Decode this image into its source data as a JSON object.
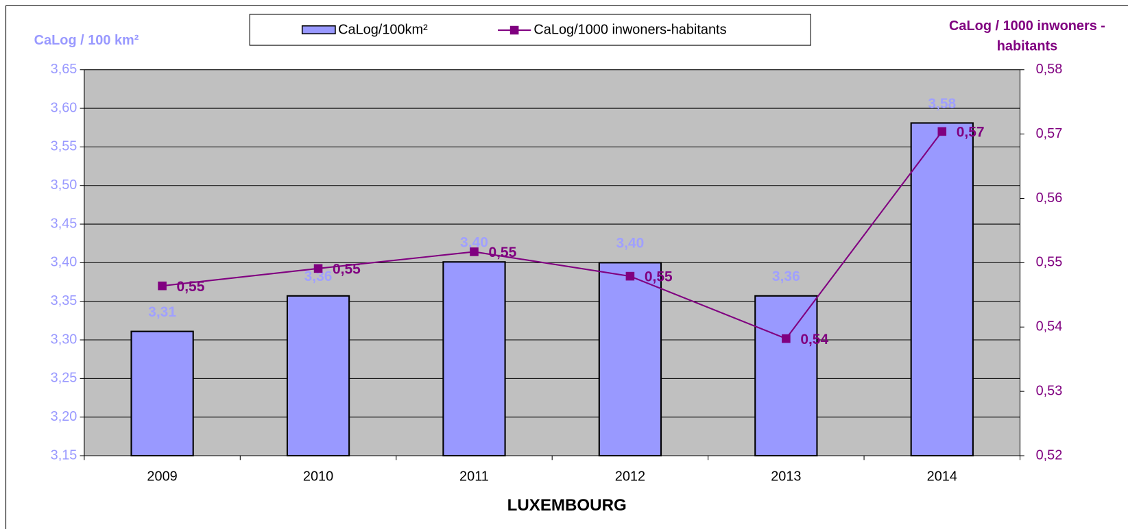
{
  "chart_data": {
    "type": "bar_line",
    "categories": [
      "2009",
      "2010",
      "2011",
      "2012",
      "2013",
      "2014"
    ],
    "xlabel": "LUXEMBOURG",
    "ylabel": "CaLog / 100 km²",
    "y2label": [
      "CaLog / 1000 inwoners -",
      "habitants"
    ],
    "ylim": [
      3.15,
      3.65
    ],
    "yticks": [
      {
        "value": 3.15,
        "label": "3,15"
      },
      {
        "value": 3.2,
        "label": "3,20"
      },
      {
        "value": 3.25,
        "label": "3,25"
      },
      {
        "value": 3.3,
        "label": "3,30"
      },
      {
        "value": 3.35,
        "label": "3,35"
      },
      {
        "value": 3.4,
        "label": "3,40"
      },
      {
        "value": 3.45,
        "label": "3,45"
      },
      {
        "value": 3.5,
        "label": "3,50"
      },
      {
        "value": 3.55,
        "label": "3,55"
      },
      {
        "value": 3.6,
        "label": "3,60"
      },
      {
        "value": 3.65,
        "label": "3,65"
      }
    ],
    "y2lim": [
      0.52,
      0.58
    ],
    "y2ticks": [
      {
        "value": 0.52,
        "label": "0,52"
      },
      {
        "value": 0.53,
        "label": "0,53"
      },
      {
        "value": 0.54,
        "label": "0,54"
      },
      {
        "value": 0.55,
        "label": "0,55"
      },
      {
        "value": 0.56,
        "label": "0,56"
      },
      {
        "value": 0.57,
        "label": "0,57"
      },
      {
        "value": 0.58,
        "label": "0,58"
      }
    ],
    "grid": true,
    "series": [
      {
        "name": "CaLog/100km²",
        "type": "bar",
        "color": "#9999ff",
        "values": [
          3.311,
          3.357,
          3.401,
          3.4,
          3.357,
          3.581
        ],
        "value_labels": [
          "3,31",
          "3,36",
          "3,40",
          "3,40",
          "3,36",
          "3,58"
        ]
      },
      {
        "name": "CaLog/1000 inwoners-habitants",
        "type": "line",
        "axis": "y2",
        "color": "#800080",
        "values": [
          0.5464,
          0.5491,
          0.5517,
          0.5479,
          0.5382,
          0.5704
        ],
        "value_labels": [
          "0,55",
          "0,55",
          "0,55",
          "0,55",
          "0,54",
          "0,57"
        ]
      }
    ]
  }
}
